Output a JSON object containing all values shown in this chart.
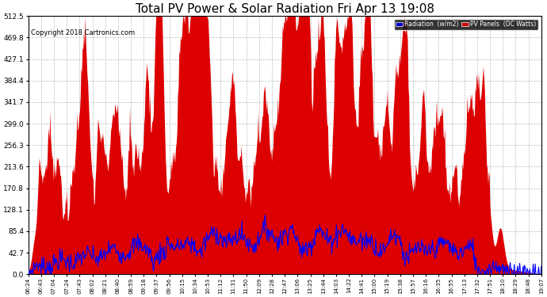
{
  "title": "Total PV Power & Solar Radiation Fri Apr 13 19:08",
  "copyright": "Copyright 2018 Cartronics.com",
  "title_fontsize": 11,
  "background_color": "#ffffff",
  "grid_color": "#aaaaaa",
  "pv_color": "#dd0000",
  "radiation_color": "#0000ff",
  "ylim": [
    0,
    512.5
  ],
  "yticks": [
    0.0,
    42.7,
    85.4,
    128.1,
    170.8,
    213.6,
    256.3,
    299.0,
    341.7,
    384.4,
    427.1,
    469.8,
    512.5
  ],
  "xtick_labels": [
    "06:24",
    "06:43",
    "07:04",
    "07:24",
    "07:43",
    "08:02",
    "08:21",
    "08:40",
    "08:59",
    "09:18",
    "09:37",
    "09:56",
    "10:15",
    "10:34",
    "10:53",
    "11:12",
    "11:31",
    "11:50",
    "12:09",
    "12:28",
    "12:47",
    "13:06",
    "13:25",
    "13:44",
    "14:03",
    "14:22",
    "14:41",
    "15:00",
    "15:19",
    "15:38",
    "15:57",
    "16:16",
    "16:35",
    "16:55",
    "17:13",
    "17:32",
    "17:51",
    "18:10",
    "18:29",
    "18:48",
    "19:07"
  ],
  "legend_radiation_label": "Radiation  (w/m2)",
  "legend_pv_label": "PV Panels  (DC Watts)",
  "legend_radiation_bg": "#0000cc",
  "legend_pv_bg": "#cc0000",
  "n_points": 760
}
